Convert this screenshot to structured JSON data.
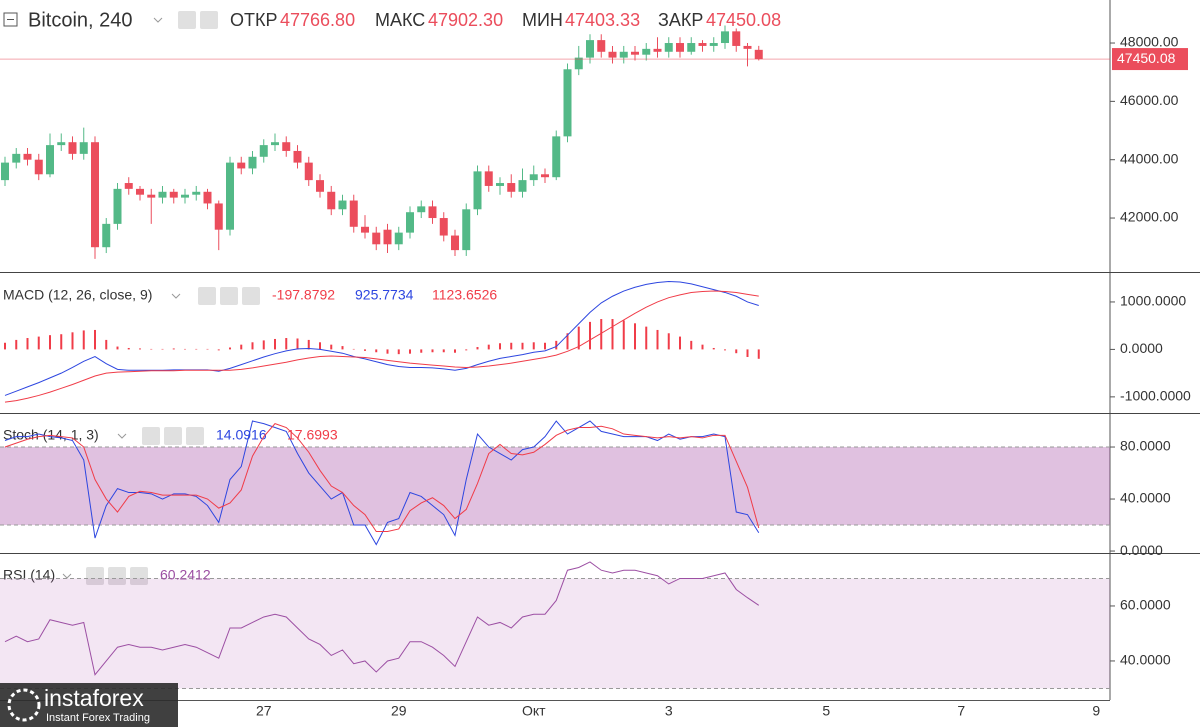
{
  "chart_data": [
    {
      "type": "candlestick",
      "title": "Bitcoin, 240",
      "legend": [
        {
          "label": "ОТКР",
          "value_label": "47766.80"
        },
        {
          "label": "МАКС",
          "value_label": "47902.30"
        },
        {
          "label": "МИН",
          "value_label": "47403.33"
        },
        {
          "label": "ЗАКР",
          "value_label": "47450.08"
        }
      ],
      "last_value_label": "47450.08",
      "categories": [
        null,
        null,
        null,
        null,
        null,
        null,
        null,
        null,
        null,
        null,
        null,
        null,
        null,
        null,
        null,
        null,
        null,
        null,
        null,
        null,
        null,
        null,
        null,
        "27",
        null,
        null,
        null,
        null,
        null,
        null,
        null,
        null,
        null,
        null,
        null,
        "29",
        null,
        null,
        null,
        null,
        null,
        null,
        null,
        null,
        null,
        null,
        null,
        "Окт",
        null,
        null,
        null,
        null,
        null,
        null,
        null,
        null,
        null,
        null,
        null,
        "3",
        null,
        null,
        null,
        null,
        null,
        null,
        null,
        null
      ],
      "x_extension": [
        null,
        null,
        null,
        null,
        null,
        "5",
        null,
        null,
        null,
        null,
        null,
        null,
        null,
        null,
        null,
        null,
        null,
        "7",
        null,
        null,
        null,
        null,
        null,
        null,
        null,
        null,
        null,
        null,
        null,
        "9"
      ],
      "open": [
        43300,
        43900,
        44200,
        44000,
        43500,
        44500,
        44600,
        44200,
        44600,
        41000,
        41800,
        43200,
        43000,
        42800,
        42700,
        42900,
        42700,
        42800,
        42900,
        42500,
        41600,
        43900,
        43700,
        44100,
        44500,
        44600,
        44300,
        43900,
        43300,
        42900,
        42300,
        42600,
        41700,
        41500,
        41600,
        41100,
        41500,
        42200,
        42400,
        42000,
        41400,
        40900,
        42300,
        43600,
        43100,
        43200,
        42900,
        43300,
        43500,
        43400,
        44800,
        47100,
        47500,
        48100,
        47700,
        47500,
        47700,
        47600,
        47800,
        47700,
        48000,
        47700,
        48000,
        47900,
        48000,
        48400,
        47900,
        47766.8
      ],
      "high": [
        44100,
        44400,
        44400,
        44200,
        44900,
        44900,
        44800,
        45100,
        44800,
        42000,
        43200,
        43400,
        43100,
        43000,
        43100,
        43000,
        43000,
        43100,
        43000,
        42600,
        44100,
        44100,
        44300,
        44700,
        44900,
        44800,
        44500,
        44100,
        43500,
        43100,
        42800,
        42800,
        42100,
        41700,
        41800,
        41700,
        42400,
        42600,
        42600,
        42200,
        41600,
        42500,
        43800,
        43800,
        43400,
        43500,
        43700,
        43800,
        43700,
        45000,
        47300,
        47900,
        48300,
        48300,
        47900,
        47900,
        47900,
        48000,
        48200,
        48200,
        48200,
        48200,
        48100,
        48200,
        48600,
        48500,
        48000,
        47902.3
      ],
      "low": [
        43100,
        43700,
        43800,
        43300,
        43400,
        44300,
        44000,
        44000,
        40600,
        40800,
        41600,
        42800,
        42600,
        41800,
        42500,
        42500,
        42500,
        42600,
        42300,
        40900,
        41400,
        43500,
        43500,
        43900,
        44300,
        44100,
        43700,
        43100,
        42700,
        42100,
        42100,
        41500,
        41300,
        40900,
        40800,
        40900,
        41300,
        42000,
        41800,
        41200,
        40700,
        40700,
        42100,
        42900,
        42800,
        42700,
        42700,
        43100,
        43200,
        43300,
        44600,
        46900,
        47300,
        47500,
        47300,
        47300,
        47400,
        47400,
        47500,
        47500,
        47500,
        47600,
        47700,
        47700,
        47800,
        47700,
        47200,
        47403.33
      ],
      "close": [
        43900,
        44200,
        44000,
        43500,
        44500,
        44600,
        44200,
        44600,
        41000,
        41800,
        43000,
        43000,
        42800,
        42700,
        42900,
        42700,
        42800,
        42900,
        42500,
        41600,
        43900,
        43700,
        44100,
        44500,
        44600,
        44300,
        43900,
        43300,
        42900,
        42300,
        42600,
        41700,
        41500,
        41100,
        41100,
        41500,
        42200,
        42400,
        42000,
        41400,
        40900,
        42300,
        43600,
        43100,
        43200,
        42900,
        43300,
        43500,
        43400,
        44800,
        47100,
        47500,
        48100,
        47700,
        47500,
        47700,
        47600,
        47800,
        47700,
        48000,
        47700,
        48000,
        47900,
        48000,
        48400,
        47900,
        47800,
        47450.08
      ],
      "up_color": "#53b987",
      "down_color": "#eb4d5c",
      "ylim": [
        40150,
        49475
      ],
      "yticks": [
        {
          "value": 42000,
          "label": "42000.00"
        },
        {
          "value": 44000,
          "label": "44000.00"
        },
        {
          "value": 46000,
          "label": "46000.00"
        },
        {
          "value": 48000,
          "label": "48000.00"
        }
      ]
    },
    {
      "type": "macd",
      "title": "MACD (12, 26, close, 9)",
      "series": [
        {
          "style": "histogram",
          "color": "#f03c48",
          "last_value_label": "-197.8792",
          "values": [
            140,
            200,
            240,
            270,
            300,
            320,
            360,
            400,
            410,
            200,
            60,
            30,
            20,
            10,
            10,
            20,
            10,
            10,
            10,
            -20,
            40,
            100,
            150,
            190,
            220,
            240,
            230,
            200,
            150,
            100,
            70,
            10,
            -30,
            -60,
            -90,
            -100,
            -90,
            -70,
            -60,
            -60,
            -70,
            -20,
            50,
            100,
            130,
            140,
            140,
            150,
            140,
            180,
            340,
            480,
            580,
            640,
            640,
            610,
            550,
            480,
            410,
            340,
            270,
            180,
            100,
            30,
            -20,
            -80,
            -160,
            -197.8792
          ]
        },
        {
          "style": "line",
          "color": "#2d46e0",
          "last_value_label": "925.7734",
          "values": [
            -970,
            -880,
            -790,
            -700,
            -600,
            -500,
            -380,
            -250,
            -150,
            -300,
            -420,
            -440,
            -440,
            -440,
            -440,
            -430,
            -430,
            -430,
            -430,
            -460,
            -400,
            -320,
            -240,
            -160,
            -90,
            -30,
            10,
            20,
            0,
            -40,
            -80,
            -150,
            -200,
            -260,
            -320,
            -360,
            -380,
            -380,
            -390,
            -410,
            -440,
            -400,
            -320,
            -250,
            -190,
            -150,
            -110,
            -60,
            -30,
            60,
            300,
            540,
            780,
            980,
            1120,
            1230,
            1310,
            1370,
            1410,
            1430,
            1420,
            1380,
            1320,
            1260,
            1200,
            1120,
            1000,
            925.7734
          ]
        },
        {
          "style": "line",
          "color": "#f03c48",
          "last_value_label": "1123.6526",
          "values": [
            -1110,
            -1080,
            -1030,
            -970,
            -900,
            -820,
            -740,
            -650,
            -560,
            -500,
            -480,
            -470,
            -460,
            -450,
            -450,
            -450,
            -440,
            -440,
            -440,
            -440,
            -440,
            -420,
            -390,
            -350,
            -310,
            -270,
            -220,
            -180,
            -150,
            -140,
            -150,
            -160,
            -170,
            -200,
            -230,
            -260,
            -290,
            -310,
            -330,
            -350,
            -370,
            -380,
            -370,
            -350,
            -320,
            -290,
            -250,
            -210,
            -170,
            -120,
            -40,
            60,
            200,
            340,
            480,
            620,
            760,
            890,
            1000,
            1090,
            1150,
            1200,
            1220,
            1230,
            1220,
            1200,
            1160,
            1123.6526
          ]
        }
      ],
      "ylim": [
        -1340,
        1610
      ],
      "yticks": [
        {
          "value": -1000,
          "label": "-1000.0000"
        },
        {
          "value": 0,
          "label": "0.0000"
        },
        {
          "value": 1000,
          "label": "1000.0000"
        }
      ]
    },
    {
      "type": "stoch",
      "title": "Stoch (14, 1, 3)",
      "band": [
        20,
        80
      ],
      "band_color": "#993399",
      "series": [
        {
          "style": "line",
          "color": "#2d46e0",
          "last_value_label": "14.0916",
          "values": [
            85,
            88,
            88,
            90,
            88,
            87,
            85,
            70,
            10,
            35,
            48,
            45,
            45,
            44,
            40,
            44,
            44,
            42,
            35,
            22,
            55,
            65,
            100,
            98,
            95,
            92,
            75,
            60,
            50,
            40,
            45,
            20,
            20,
            5,
            22,
            25,
            45,
            42,
            35,
            28,
            12,
            55,
            90,
            80,
            75,
            70,
            78,
            80,
            88,
            100,
            90,
            95,
            100,
            92,
            90,
            88,
            88,
            88,
            85,
            90,
            86,
            88,
            88,
            90,
            88,
            30,
            28,
            14.0916
          ]
        },
        {
          "style": "line",
          "color": "#f03c48",
          "last_value_label": "17.6993",
          "values": [
            80,
            83,
            86,
            88,
            89,
            88,
            87,
            80,
            55,
            40,
            30,
            42,
            46,
            45,
            43,
            43,
            43,
            43,
            40,
            33,
            37,
            47,
            73,
            88,
            98,
            95,
            87,
            76,
            62,
            50,
            45,
            35,
            28,
            15,
            15,
            17,
            31,
            37,
            41,
            35,
            25,
            32,
            52,
            75,
            82,
            75,
            74,
            76,
            82,
            89,
            93,
            95,
            95,
            96,
            94,
            90,
            89,
            88,
            87,
            88,
            87,
            88,
            87,
            89,
            89,
            69,
            49,
            17.6993
          ]
        }
      ],
      "ylim": [
        -1.5,
        105.4
      ],
      "yticks": [
        {
          "value": 0,
          "label": "0.0000"
        },
        {
          "value": 40,
          "label": "40.0000"
        },
        {
          "value": 80,
          "label": "80.0000"
        }
      ]
    },
    {
      "type": "rsi",
      "title": "RSI (14)",
      "band": [
        30,
        70
      ],
      "band_color": "#993399",
      "series": [
        {
          "style": "line",
          "color": "#9c4fa3",
          "last_value_label": "60.2412",
          "values": [
            47,
            49,
            47,
            48,
            55,
            54,
            53,
            54,
            35,
            40,
            45,
            46,
            45,
            45,
            44,
            45,
            46,
            45,
            43,
            41,
            52,
            52,
            54,
            56,
            57,
            56,
            52,
            48,
            46,
            42,
            44,
            39,
            40,
            36,
            40,
            41,
            47,
            47,
            45,
            42,
            38,
            47,
            56,
            53,
            54,
            52,
            56,
            57,
            57,
            62,
            73,
            74,
            76,
            73,
            72,
            73,
            73,
            72,
            71,
            68,
            70,
            70,
            70,
            71,
            72,
            66,
            63,
            60.2412
          ]
        }
      ],
      "ylim": [
        25.8,
        78.9
      ],
      "yticks": [
        {
          "value": 40,
          "label": "40.0000"
        },
        {
          "value": 60,
          "label": "60.0000"
        }
      ]
    }
  ],
  "watermark": {
    "brand": "instaforex",
    "tagline": "Instant Forex Trading"
  }
}
